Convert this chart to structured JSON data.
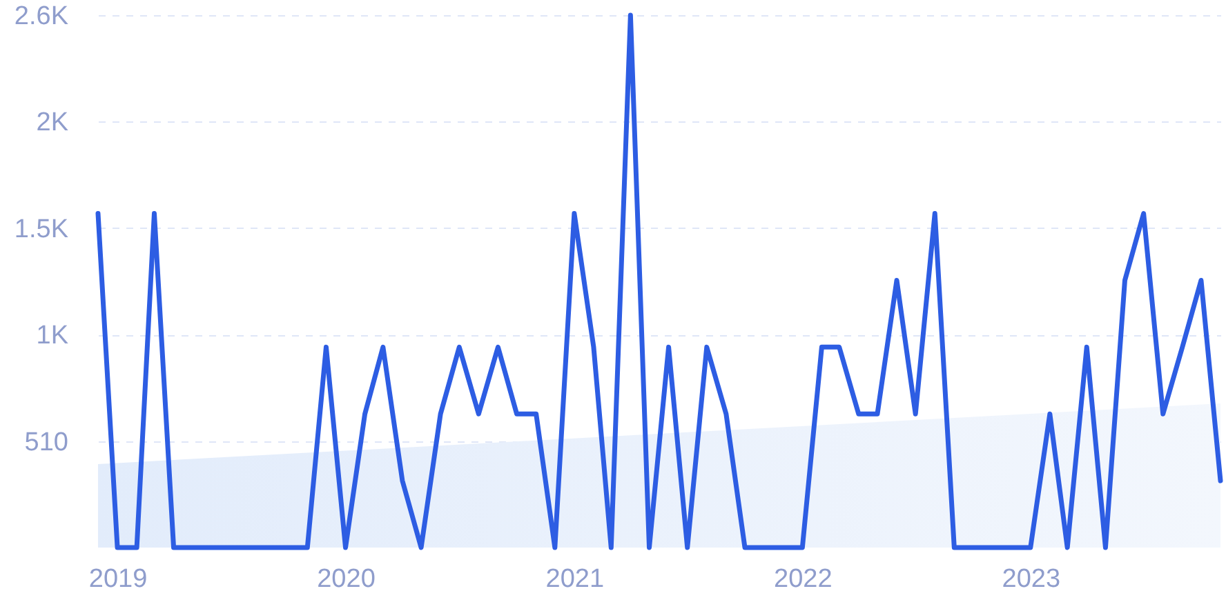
{
  "chart_data": {
    "type": "line",
    "x": [
      "2018-12",
      "2019-01",
      "2019-02",
      "2019-03",
      "2019-04",
      "2019-05",
      "2019-06",
      "2019-07",
      "2019-08",
      "2019-09",
      "2019-10",
      "2019-11",
      "2019-12",
      "2020-01",
      "2020-02",
      "2020-03",
      "2020-04",
      "2020-05",
      "2020-06",
      "2020-07",
      "2020-08",
      "2020-09",
      "2020-10",
      "2020-11",
      "2020-12",
      "2021-01",
      "2021-02",
      "2021-03",
      "2021-04",
      "2021-05",
      "2021-06",
      "2021-07",
      "2021-08",
      "2021-09",
      "2021-10",
      "2021-11",
      "2021-12",
      "2022-01",
      "2022-02",
      "2022-03",
      "2022-04",
      "2022-05",
      "2022-06",
      "2022-07",
      "2022-08",
      "2022-09",
      "2022-10",
      "2022-11",
      "2022-12",
      "2023-01",
      "2023-02",
      "2023-03",
      "2023-04",
      "2023-05",
      "2023-06",
      "2023-07",
      "2023-08",
      "2023-09",
      "2023-10",
      "2023-11"
    ],
    "series": [
      {
        "type": "area",
        "color": "#e2ecfb",
        "x": [
          "2018-12",
          "2023-11"
        ],
        "values": [
          400,
          690
        ]
      },
      {
        "color": "#2d5de3",
        "values": [
          1600,
          0,
          0,
          1600,
          0,
          0,
          0,
          0,
          0,
          0,
          0,
          0,
          960,
          0,
          640,
          960,
          320,
          0,
          640,
          960,
          640,
          960,
          640,
          640,
          0,
          1600,
          960,
          0,
          2550,
          0,
          960,
          0,
          960,
          640,
          0,
          0,
          0,
          0,
          960,
          960,
          640,
          640,
          1280,
          640,
          1600,
          0,
          0,
          0,
          0,
          0,
          640,
          0,
          960,
          0,
          1280,
          1600,
          640,
          960,
          1280,
          320
        ]
      }
    ],
    "xlim": [
      "2018-12",
      "2023-11"
    ],
    "xticks": [
      "2019",
      "2020",
      "2021",
      "2022",
      "2023"
    ],
    "ylim": [
      0,
      2550
    ],
    "yticks": [
      510,
      {
        "value": 1020,
        "label": "1K"
      },
      {
        "value": 1530,
        "label": "1.5K"
      },
      {
        "value": 2040,
        "label": "2K"
      },
      {
        "value": 2550,
        "label": "2.6K"
      }
    ],
    "grid": "y"
  }
}
